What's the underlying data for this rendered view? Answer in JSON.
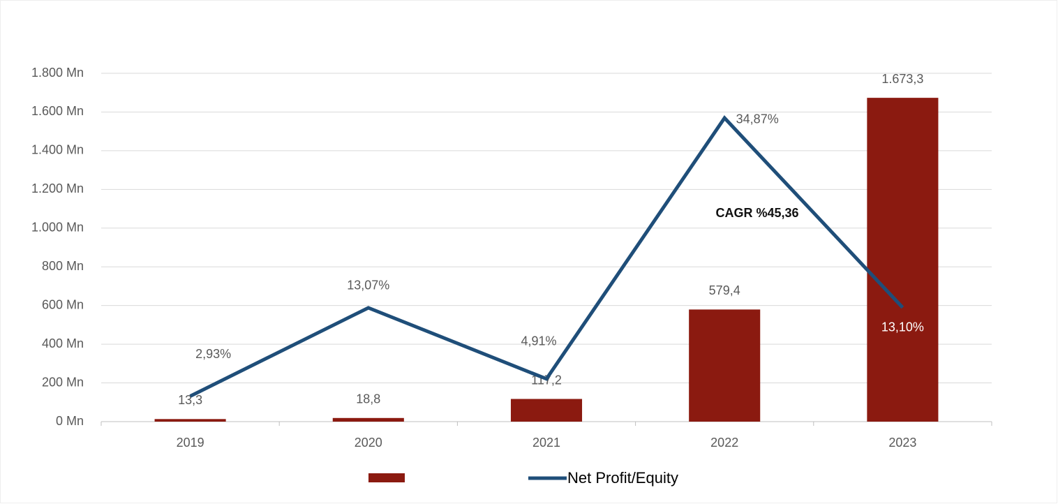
{
  "chart_data": {
    "type": "bar-line",
    "categories": [
      "2019",
      "2020",
      "2021",
      "2022",
      "2023"
    ],
    "series": [
      {
        "type": "bar",
        "color": "#8b1a10",
        "values": [
          13.3,
          18.8,
          117.2,
          579.4,
          1673.3
        ],
        "value_labels": [
          "13,3",
          "18,8",
          "117,2",
          "579,4",
          "1.673,3"
        ]
      },
      {
        "type": "line",
        "axis": "y2",
        "name": "Net Profit/Equity",
        "color": "#1f4e79",
        "values": [
          2.93,
          13.07,
          4.91,
          34.87,
          13.1
        ],
        "value_labels": [
          "2,93%",
          "13,07%",
          "4,91%",
          "34,87%",
          "13,10%"
        ]
      }
    ],
    "ylim": [
      0,
      1800
    ],
    "yticks": [
      {
        "value": 0,
        "label": "0 Mn"
      },
      {
        "value": 200,
        "label": "200 Mn"
      },
      {
        "value": 400,
        "label": "400 Mn"
      },
      {
        "value": 600,
        "label": "600 Mn"
      },
      {
        "value": 800,
        "label": "800 Mn"
      },
      {
        "value": 1000,
        "label": "1.000 Mn"
      },
      {
        "value": 1200,
        "label": "1.200 Mn"
      },
      {
        "value": 1400,
        "label": "1.400 Mn"
      },
      {
        "value": 1600,
        "label": "1.600 Mn"
      },
      {
        "value": 1800,
        "label": "1.800 Mn"
      }
    ],
    "y2lim": [
      0,
      40
    ],
    "grid": true,
    "legend": "bottom",
    "annotations": [
      "CAGR %45,36"
    ]
  }
}
